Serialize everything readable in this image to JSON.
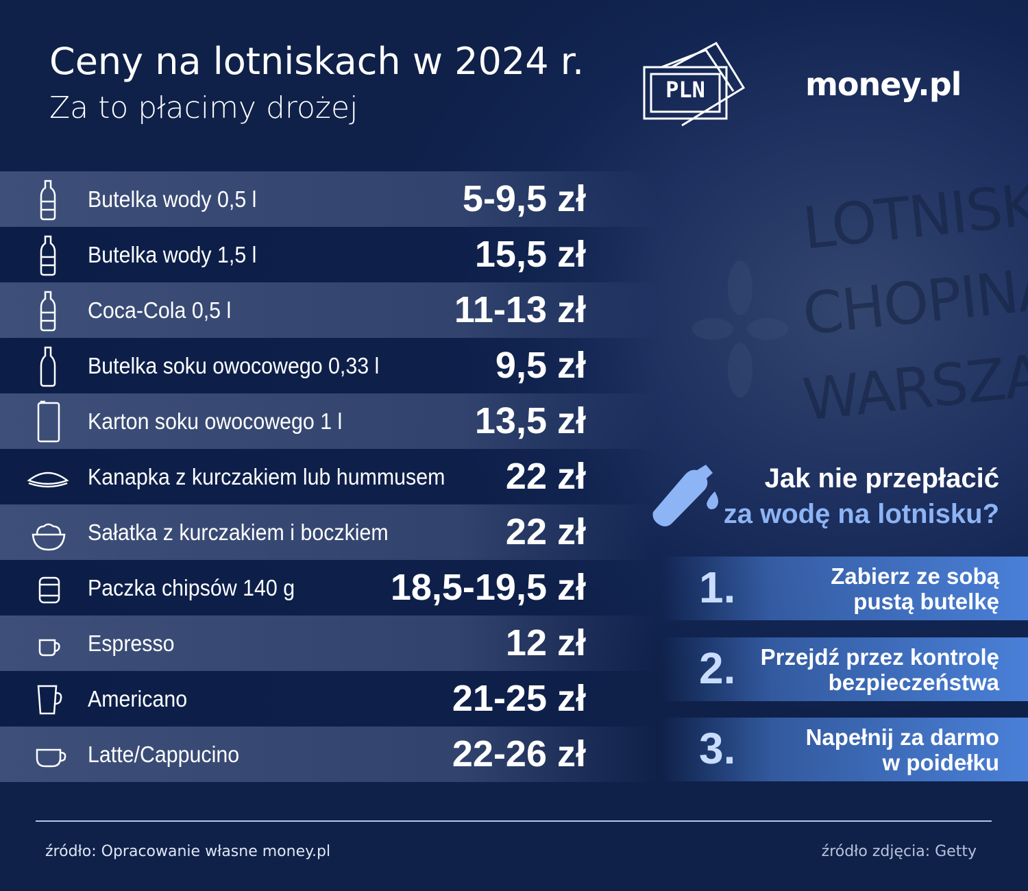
{
  "header": {
    "title": "Ceny na lotniskach w 2024 r.",
    "subtitle": "Za to płacimy drożej",
    "badge": "PLN",
    "brand": "money.pl"
  },
  "photo": {
    "sign": [
      "LOTNISKO",
      "CHOPINA",
      "WARSZAWA"
    ]
  },
  "table": {
    "rows": [
      {
        "label": "Butelka wody 0,5 l",
        "price": "5-9,5 zł"
      },
      {
        "label": "Butelka wody 1,5 l",
        "price": "15,5 zł"
      },
      {
        "label": "Coca-Cola 0,5 l",
        "price": "11-13 zł"
      },
      {
        "label": "Butelka soku owocowego 0,33 l",
        "price": "9,5 zł"
      },
      {
        "label": "Karton soku owocowego 1 l",
        "price": "13,5 zł"
      },
      {
        "label": "Kanapka z kurczakiem lub hummusem",
        "price": "22 zł"
      },
      {
        "label": "Sałatka z kurczakiem i boczkiem",
        "price": "22 zł"
      },
      {
        "label": "Paczka chipsów 140 g",
        "price": "18,5-19,5 zł"
      },
      {
        "label": "Espresso",
        "price": "12 zł"
      },
      {
        "label": "Americano",
        "price": "21-25 zł"
      },
      {
        "label": "Latte/Cappucino",
        "price": "22-26 zł"
      }
    ]
  },
  "tips": {
    "title": "Jak nie przepłacić",
    "subtitle": "za wodę na lotnisku?",
    "steps": [
      {
        "number": "1.",
        "lines": [
          "Zabierz ze sobą",
          "pustą butelkę"
        ]
      },
      {
        "number": "2.",
        "lines": [
          "Przejdź przez kontrolę",
          "bezpieczeństwa"
        ]
      },
      {
        "number": "3.",
        "lines": [
          "Napełnij za darmo",
          "w poidełku"
        ]
      }
    ]
  },
  "footer": {
    "source": "źródło: Opracowanie własne money.pl",
    "photo_credit": "źródło zdjęcia: Getty"
  }
}
